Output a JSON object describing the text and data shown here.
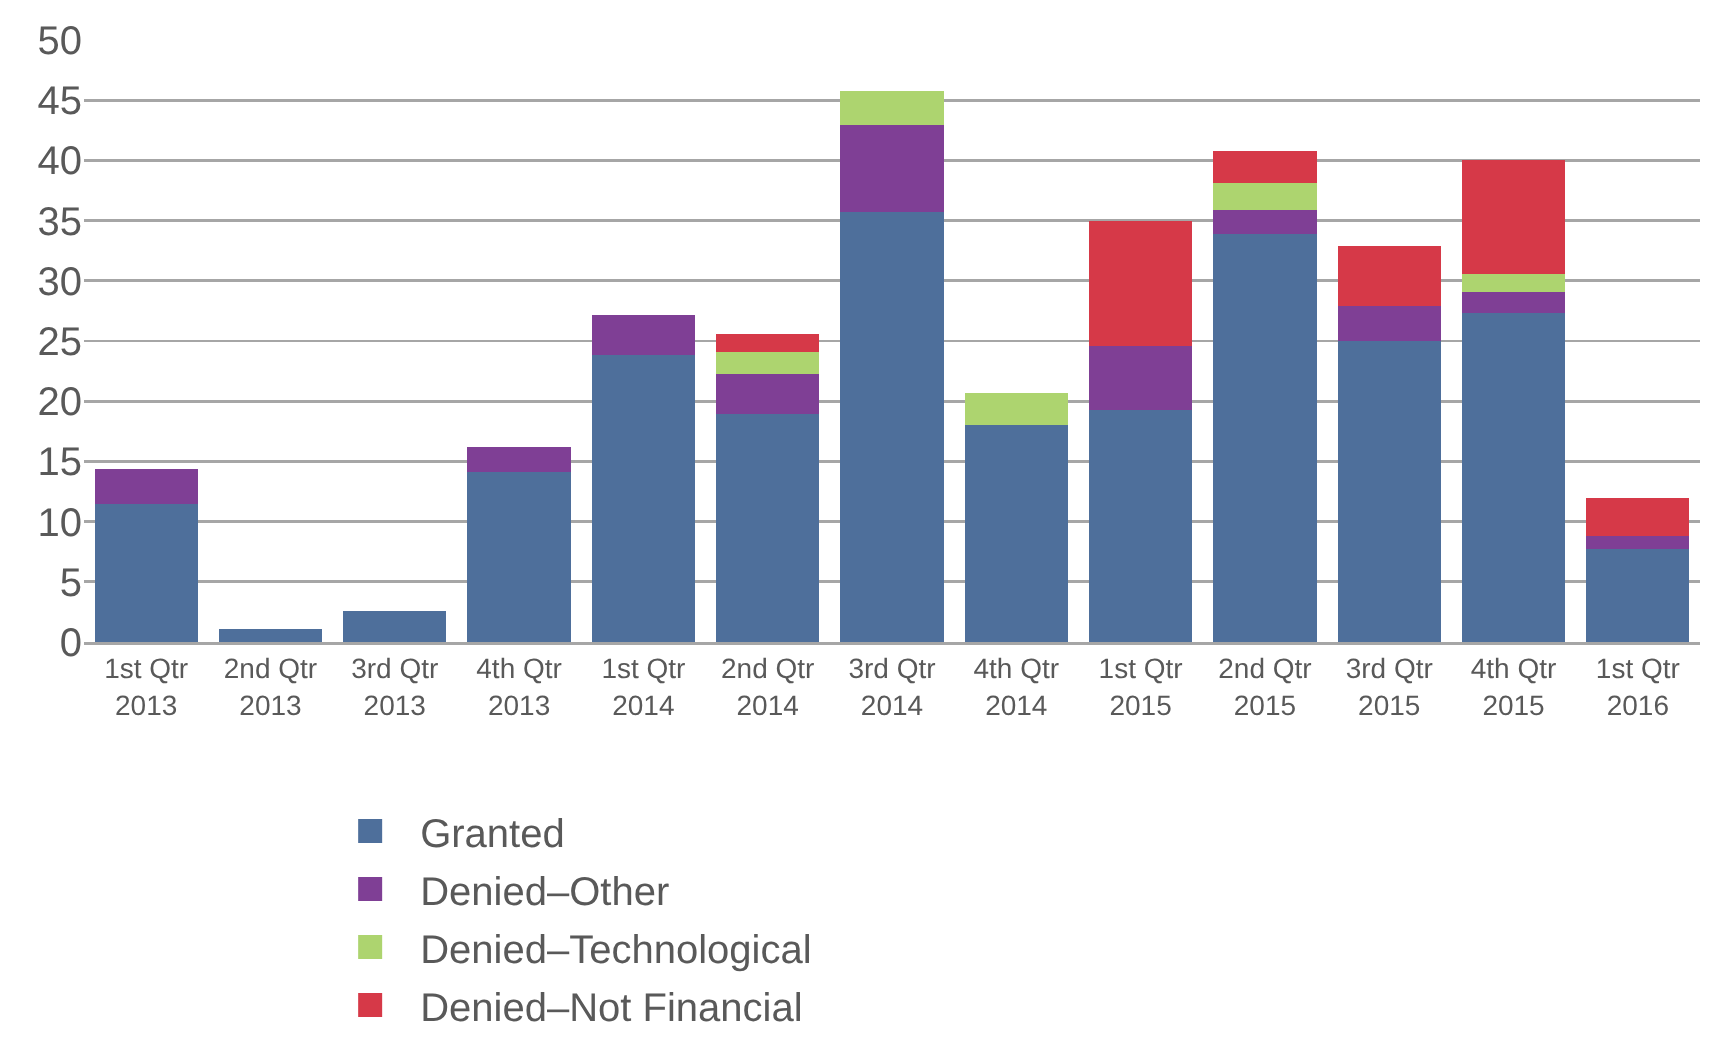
{
  "chart_data": {
    "type": "bar",
    "stacked": true,
    "categories": [
      "1st Qtr 2013",
      "2nd Qtr 2013",
      "3rd Qtr 2013",
      "4th Qtr 2013",
      "1st Qtr 2014",
      "2nd Qtr 2014",
      "3rd Qtr 2014",
      "4th Qtr 2014",
      "1st Qtr 2015",
      "2nd Qtr 2015",
      "3rd Qtr 2015",
      "4th Qtr 2015",
      "1st Qtr 2016"
    ],
    "series": [
      {
        "name": "Granted",
        "color": "#4e6f9b",
        "values": [
          11.5,
          1.1,
          2.6,
          14.1,
          23.8,
          18.9,
          35.7,
          18.0,
          19.3,
          33.9,
          25.0,
          27.3,
          7.7
        ]
      },
      {
        "name": "Denied–Other",
        "color": "#7f3f95",
        "values": [
          2.9,
          null,
          null,
          2.1,
          3.4,
          3.4,
          7.2,
          null,
          5.3,
          2.0,
          2.9,
          1.8,
          1.1
        ]
      },
      {
        "name": "Denied–Technological",
        "color": "#add46f",
        "values": [
          null,
          null,
          null,
          null,
          null,
          1.8,
          2.9,
          2.7,
          null,
          2.2,
          null,
          1.5,
          null
        ]
      },
      {
        "name": "Denied–Not Financial",
        "color": "#d63948",
        "values": [
          null,
          null,
          null,
          null,
          null,
          1.5,
          null,
          null,
          10.4,
          2.7,
          5.0,
          9.4,
          3.2
        ]
      }
    ],
    "ylim": [
      0,
      50
    ],
    "yticks": [
      0,
      5,
      10,
      15,
      20,
      25,
      30,
      35,
      40,
      45,
      50
    ],
    "grid": "y",
    "legend": "bottom"
  }
}
